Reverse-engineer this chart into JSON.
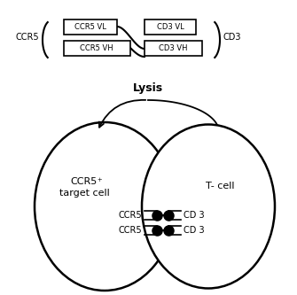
{
  "bg_color": "#ffffff",
  "line_color": "#000000",
  "fig_width": 3.35,
  "fig_height": 3.33,
  "dpi": 100,
  "antibody": {
    "ccr5_label": "CCR5",
    "cd3_label": "CD3",
    "box1_label": "CCR5 VL",
    "box2_label": "CCR5 VH",
    "box3_label": "CD3 VL",
    "box4_label": "CD3 VH"
  },
  "lysis_label": "Lysis",
  "cell1_line1": "CCR5",
  "cell1_sup": "+",
  "cell1_line2": "target cell",
  "cell2_label": "T- cell",
  "receptor1_left": "CCR5",
  "receptor2_left": "CCR5",
  "receptor1_right": "CD 3",
  "receptor2_right": "CD 3"
}
